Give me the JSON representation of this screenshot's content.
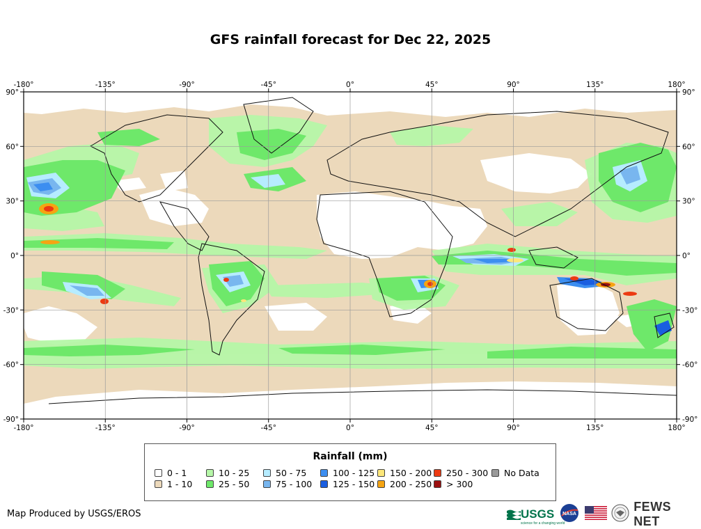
{
  "title": "GFS rainfall forecast for Dec 22, 2025",
  "map": {
    "lon_ticks": [
      "-180°",
      "-135°",
      "-90°",
      "-45°",
      "0°",
      "45°",
      "90°",
      "135°",
      "180°"
    ],
    "lat_ticks": [
      "90°",
      "60°",
      "30°",
      "0°",
      "-30°",
      "-60°",
      "-90°"
    ]
  },
  "legend": {
    "title": "Rainfall (mm)",
    "items": [
      {
        "label": "0 - 1",
        "color": "#ffffff"
      },
      {
        "label": "1 - 10",
        "color": "#ecd9bb"
      },
      {
        "label": "10 - 25",
        "color": "#b6f7a8"
      },
      {
        "label": "25 - 50",
        "color": "#6ee86a"
      },
      {
        "label": "50 - 75",
        "color": "#b6ecff"
      },
      {
        "label": "75 - 100",
        "color": "#78b6ef"
      },
      {
        "label": "100 - 125",
        "color": "#3c8ef0"
      },
      {
        "label": "125 - 150",
        "color": "#1a5ee0"
      },
      {
        "label": "150 - 200",
        "color": "#fde77a"
      },
      {
        "label": "200 - 250",
        "color": "#f5a412"
      },
      {
        "label": "250 - 300",
        "color": "#ec3a12"
      },
      {
        "label": "> 300",
        "color": "#9c1010"
      },
      {
        "label": "No Data",
        "color": "#999999"
      }
    ]
  },
  "footer": {
    "credit": "Map Produced by USGS/EROS",
    "usgs": "USGS",
    "usgs_tagline": "science for a changing world",
    "nasa": "NASA",
    "fews": "FEWS NET"
  }
}
